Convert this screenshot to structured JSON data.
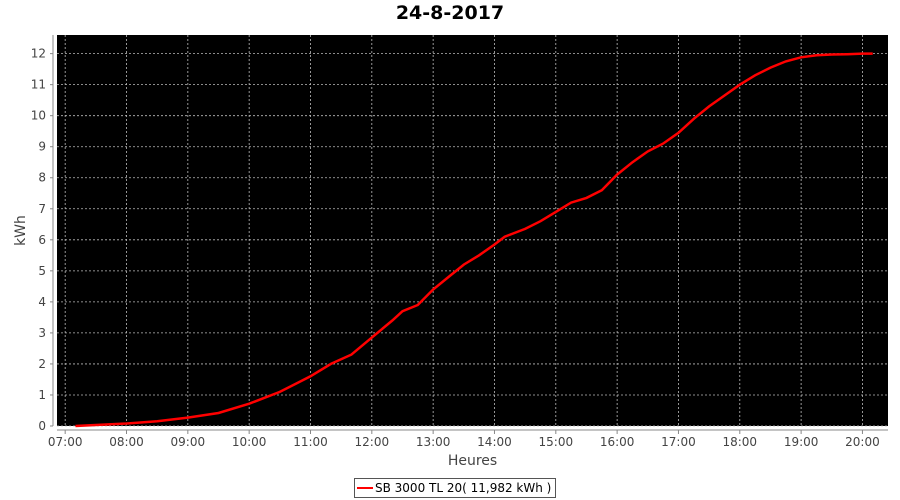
{
  "chart_data": {
    "type": "line",
    "title": "24-8-2017",
    "xlabel": "Heures",
    "ylabel": "kWh",
    "xlim": [
      "06:52",
      "20:25"
    ],
    "ylim": [
      0,
      12.6
    ],
    "grid": true,
    "background": "#000000",
    "legend_position": "bottom",
    "x_ticks": [
      "07:00",
      "08:00",
      "09:00",
      "10:00",
      "11:00",
      "12:00",
      "13:00",
      "14:00",
      "15:00",
      "16:00",
      "17:00",
      "18:00",
      "19:00",
      "20:00"
    ],
    "y_ticks": [
      "0",
      "1",
      "2",
      "3",
      "4",
      "5",
      "6",
      "7",
      "8",
      "9",
      "10",
      "11",
      "12"
    ],
    "series": [
      {
        "name": "SB 3000 TL 20( 11,982 kWh )",
        "color": "#ff0000",
        "x": [
          "07:10",
          "08:00",
          "08:30",
          "09:00",
          "09:30",
          "10:00",
          "10:30",
          "11:00",
          "11:20",
          "11:40",
          "12:00",
          "12:20",
          "12:30",
          "12:45",
          "13:00",
          "13:15",
          "13:30",
          "13:45",
          "14:00",
          "14:10",
          "14:30",
          "14:45",
          "15:00",
          "15:15",
          "15:30",
          "15:45",
          "16:00",
          "16:15",
          "16:30",
          "16:45",
          "17:00",
          "17:15",
          "17:30",
          "17:45",
          "18:00",
          "18:15",
          "18:30",
          "18:45",
          "19:00",
          "19:15",
          "19:30",
          "19:45",
          "20:00",
          "20:10"
        ],
        "y": [
          0,
          0.08,
          0.15,
          0.27,
          0.42,
          0.72,
          1.1,
          1.6,
          2.0,
          2.3,
          2.85,
          3.4,
          3.7,
          3.9,
          4.4,
          4.8,
          5.2,
          5.5,
          5.85,
          6.1,
          6.35,
          6.6,
          6.9,
          7.2,
          7.35,
          7.6,
          8.1,
          8.5,
          8.85,
          9.1,
          9.45,
          9.9,
          10.3,
          10.65,
          11.0,
          11.3,
          11.55,
          11.75,
          11.88,
          11.95,
          11.97,
          11.98,
          12.0,
          12.0
        ]
      }
    ]
  }
}
